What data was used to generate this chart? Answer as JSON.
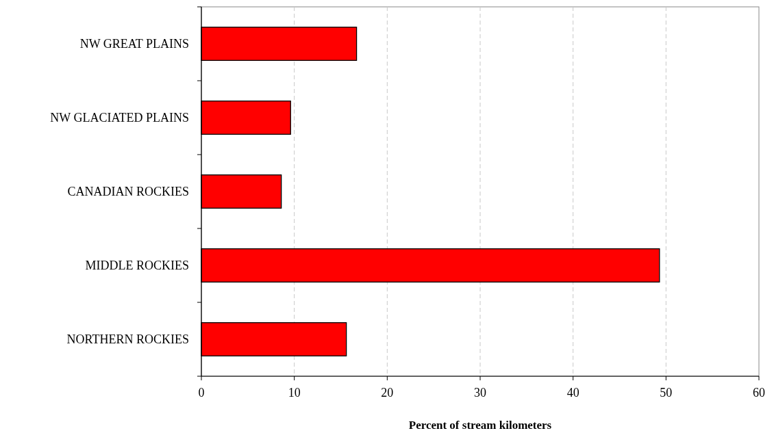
{
  "chart_data": {
    "type": "bar",
    "orientation": "horizontal",
    "xlabel": "Percent of stream kilometers",
    "categories": [
      "NW GREAT PLAINS",
      "NW GLACIATED PLAINS",
      "CANADIAN ROCKIES",
      "MIDDLE ROCKIES",
      "NORTHERN ROCKIES"
    ],
    "values": [
      16.7,
      9.6,
      8.6,
      49.3,
      15.6
    ],
    "color": "#ff0000",
    "xlim": [
      0,
      60
    ],
    "xticks": [
      0,
      10,
      20,
      30,
      40,
      50,
      60
    ],
    "grid": "x"
  }
}
